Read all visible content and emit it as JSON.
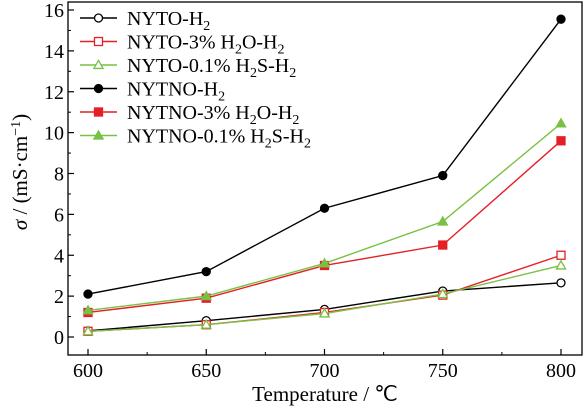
{
  "chart_data": {
    "type": "line",
    "x": [
      600,
      650,
      700,
      750,
      800
    ],
    "xlabel": "Temperature / ℃",
    "ylabel_symbol": "σ",
    "ylabel_prefix": " / (mS·cm",
    "ylabel_exp": "−1",
    "ylabel_suffix": ")",
    "xlim": [
      600,
      800
    ],
    "ylim": [
      0,
      16
    ],
    "xticks": [
      "600",
      "650",
      "700",
      "750",
      "800"
    ],
    "yticks": [
      "0",
      "2",
      "4",
      "6",
      "8",
      "10",
      "12",
      "14",
      "16"
    ],
    "grid": false,
    "legend_position": "top-left",
    "series": [
      {
        "name": "NYTO-H₂",
        "legend_parts": [
          [
            "NYTO-H",
            false
          ],
          [
            "2",
            true
          ]
        ],
        "marker": "circle",
        "filled": false,
        "color": "#000000",
        "values": [
          0.3,
          0.8,
          1.35,
          2.25,
          2.65
        ]
      },
      {
        "name": "NYTO-3% H₂O-H₂",
        "legend_parts": [
          [
            "NYTO-3% H",
            false
          ],
          [
            "2",
            true
          ],
          [
            "O-H",
            false
          ],
          [
            "2",
            true
          ]
        ],
        "marker": "square",
        "filled": false,
        "color": "#e41f26",
        "values": [
          0.28,
          0.6,
          1.2,
          2.05,
          4.0
        ]
      },
      {
        "name": "NYTO-0.1% H₂S-H₂",
        "legend_parts": [
          [
            "NYTO-0.1% H",
            false
          ],
          [
            "2",
            true
          ],
          [
            "S-H",
            false
          ],
          [
            "2",
            true
          ]
        ],
        "marker": "triangle",
        "filled": false,
        "color": "#78c143",
        "values": [
          0.28,
          0.6,
          1.15,
          2.1,
          3.5
        ]
      },
      {
        "name": "NYTNO-H₂",
        "legend_parts": [
          [
            "NYTNO-H",
            false
          ],
          [
            "2",
            true
          ]
        ],
        "marker": "circle",
        "filled": true,
        "color": "#000000",
        "values": [
          2.1,
          3.2,
          6.3,
          7.9,
          15.55
        ]
      },
      {
        "name": "NYTNO-3% H₂O-H₂",
        "legend_parts": [
          [
            "NYTNO-3% H",
            false
          ],
          [
            "2",
            true
          ],
          [
            "O-H",
            false
          ],
          [
            "2",
            true
          ]
        ],
        "marker": "square",
        "filled": true,
        "color": "#e41f26",
        "values": [
          1.2,
          1.9,
          3.5,
          4.5,
          9.6
        ]
      },
      {
        "name": "NYTNO-0.1% H₂S-H₂",
        "legend_parts": [
          [
            "NYTNO-0.1% H",
            false
          ],
          [
            "2",
            true
          ],
          [
            "S-H",
            false
          ],
          [
            "2",
            true
          ]
        ],
        "marker": "triangle",
        "filled": true,
        "color": "#78c143",
        "values": [
          1.3,
          2.0,
          3.6,
          5.65,
          10.45
        ]
      }
    ]
  }
}
